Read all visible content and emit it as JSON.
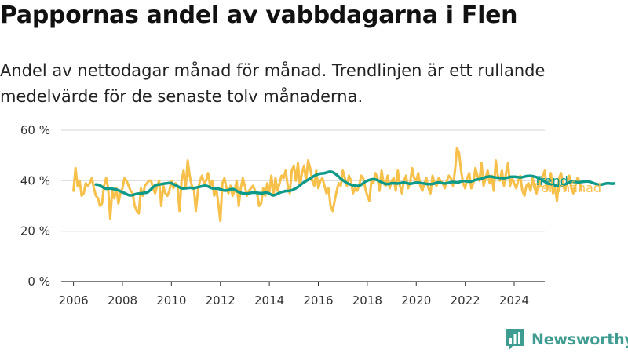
{
  "header": {
    "title": "Pappornas andel av vabbdagarna i Flen",
    "subtitle": "Andel av nettodagar månad för månad. Trendlinjen är ett rullande medelvärde för de senaste tolv månaderna."
  },
  "brand": {
    "name": "Newsworthy",
    "icon": "newsworthy-chart-logo-icon",
    "color": "#3e9c90"
  },
  "colors": {
    "monthly": "#f7c04a",
    "trend": "#0e9a8a",
    "grid": "#dddddd",
    "axis": "#333333"
  },
  "chart_data": {
    "type": "line",
    "xlabel": "",
    "ylabel": "",
    "xlim": [
      2005.5,
      2025.25
    ],
    "ylim": [
      0,
      60
    ],
    "x_ticks": [
      2006,
      2008,
      2010,
      2012,
      2014,
      2016,
      2018,
      2020,
      2022,
      2024
    ],
    "y_ticks": [
      0,
      20,
      40,
      60
    ],
    "y_tick_labels": [
      "0 %",
      "20 %",
      "40 %",
      "60 %"
    ],
    "grid": "horizontal",
    "legend": "right-end",
    "series": [
      {
        "name": "Per månad",
        "color": "#f7c04a",
        "x_start": 2006.0,
        "x_step": 0.08333,
        "values": [
          36,
          45,
          38,
          40,
          34,
          35,
          39,
          38,
          39,
          41,
          37,
          34,
          33,
          30,
          31,
          38,
          41,
          37,
          25,
          36,
          33,
          37,
          31,
          35,
          37,
          41,
          40,
          38,
          36,
          35,
          30,
          28,
          27,
          37,
          34,
          38,
          39,
          40,
          40,
          37,
          35,
          38,
          40,
          30,
          38,
          35,
          34,
          36,
          40,
          37,
          39,
          38,
          28,
          40,
          44,
          37,
          48,
          42,
          38,
          37,
          28,
          36,
          40,
          42,
          39,
          40,
          43,
          38,
          40,
          34,
          37,
          31,
          24,
          39,
          41,
          37,
          35,
          38,
          34,
          36,
          40,
          30,
          37,
          41,
          38,
          34,
          36,
          37,
          38,
          36,
          35,
          30,
          31,
          37,
          34,
          39,
          35,
          42,
          34,
          41,
          36,
          39,
          42,
          41,
          44,
          38,
          35,
          44,
          46,
          40,
          47,
          38,
          43,
          46,
          40,
          48,
          45,
          40,
          38,
          44,
          37,
          40,
          41,
          38,
          35,
          37,
          30,
          28,
          32,
          36,
          39,
          38,
          44,
          41,
          38,
          42,
          40,
          35,
          37,
          36,
          38,
          42,
          41,
          37,
          34,
          32,
          40,
          39,
          43,
          41,
          36,
          44,
          39,
          38,
          42,
          37,
          40,
          41,
          36,
          44,
          38,
          35,
          40,
          42,
          37,
          39,
          45,
          41,
          40,
          43,
          38,
          36,
          39,
          41,
          37,
          35,
          42,
          39,
          38,
          41,
          40,
          39,
          37,
          40,
          42,
          41,
          38,
          44,
          53,
          51,
          44,
          39,
          37,
          41,
          43,
          37,
          39,
          45,
          42,
          40,
          47,
          38,
          41,
          44,
          39,
          42,
          36,
          48,
          42,
          40,
          44,
          38,
          43,
          47,
          38,
          41,
          39,
          37,
          40,
          42,
          36,
          34,
          38,
          39,
          36,
          41,
          37,
          35,
          40,
          38,
          42,
          44,
          36,
          39,
          43,
          35,
          37,
          32,
          41,
          43,
          38,
          36,
          40,
          42,
          37,
          35,
          38,
          41,
          40,
          36
        ]
      },
      {
        "name": "Trend",
        "color": "#0e9a8a",
        "x_start": 2006.917,
        "x_step": 0.08333,
        "values": [
          38.5,
          38.4,
          38.1,
          37.6,
          37.1,
          36.8,
          36.9,
          36.9,
          36.8,
          36.6,
          36.5,
          36.2,
          35.8,
          35.4,
          35.1,
          34.7,
          34.3,
          34.2,
          34.3,
          34.6,
          34.8,
          34.9,
          35.0,
          35.1,
          35.2,
          35.3,
          35.8,
          36.6,
          37.4,
          38.1,
          38.4,
          38.5,
          38.6,
          38.8,
          38.9,
          39.0,
          39.1,
          39.0,
          38.6,
          38.2,
          37.8,
          37.3,
          37.0,
          36.9,
          37.0,
          37.1,
          37.2,
          37.1,
          37.0,
          37.2,
          37.4,
          37.6,
          37.8,
          38.0,
          38.0,
          37.7,
          37.3,
          37.0,
          36.9,
          36.9,
          36.8,
          36.6,
          36.3,
          36.1,
          36.1,
          36.3,
          36.6,
          36.7,
          36.4,
          35.9,
          35.5,
          35.2,
          35.0,
          34.9,
          34.9,
          35.0,
          35.2,
          35.3,
          35.3,
          35.2,
          35.1,
          35.0,
          35.1,
          35.3,
          35.3,
          34.9,
          34.4,
          34.2,
          34.4,
          34.8,
          35.2,
          35.5,
          35.7,
          35.9,
          35.9,
          36.0,
          36.2,
          36.6,
          37.0,
          37.5,
          38.1,
          38.8,
          39.4,
          39.9,
          40.4,
          40.9,
          41.4,
          41.9,
          42.3,
          42.6,
          42.8,
          42.9,
          43.0,
          43.2,
          43.5,
          43.6,
          43.4,
          42.9,
          42.3,
          41.6,
          40.8,
          40.2,
          39.6,
          39.1,
          38.7,
          38.4,
          38.2,
          38.0,
          37.9,
          38.0,
          38.4,
          39.0,
          39.6,
          40.0,
          40.3,
          40.5,
          40.6,
          40.5,
          40.2,
          39.8,
          39.4,
          39.0,
          38.7,
          38.6,
          38.8,
          39.0,
          39.0,
          38.9,
          38.9,
          39.0,
          39.2,
          39.3,
          39.1,
          38.9,
          38.8,
          38.9,
          39.1,
          39.2,
          39.2,
          39.1,
          39.0,
          38.9,
          38.7,
          38.6,
          38.6,
          38.7,
          38.9,
          39.2,
          39.3,
          39.2,
          39.0,
          38.9,
          39.0,
          39.2,
          39.4,
          39.5,
          39.4,
          39.3,
          39.4,
          39.7,
          39.9,
          39.9,
          39.7,
          39.6,
          39.7,
          40.0,
          40.3,
          40.5,
          40.6,
          40.8,
          41.1,
          41.4,
          41.6,
          41.7,
          41.6,
          41.4,
          41.3,
          41.2,
          41.1,
          41.0,
          41.0,
          41.1,
          41.3,
          41.5,
          41.6,
          41.6,
          41.5,
          41.4,
          41.3,
          41.4,
          41.6,
          41.8,
          41.9,
          41.9,
          41.8,
          41.6,
          41.4,
          41.0,
          40.6,
          40.1,
          39.6,
          39.1,
          38.8,
          38.5,
          38.3,
          38.1,
          37.9,
          37.8,
          37.8,
          38.1,
          38.5,
          39.0,
          39.4,
          39.6,
          39.6,
          39.5,
          39.4,
          39.4,
          39.5,
          39.6,
          39.7,
          39.7,
          39.6,
          39.3,
          39.0,
          38.7,
          38.5,
          38.4,
          38.5,
          38.7,
          38.9,
          39.0,
          38.9,
          38.8,
          38.9
        ]
      }
    ]
  }
}
